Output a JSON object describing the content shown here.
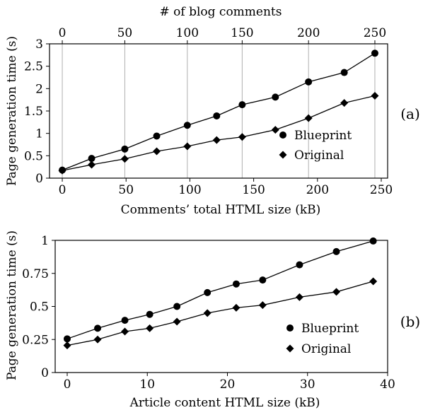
{
  "chart_data": [
    {
      "type": "line",
      "panel_label": "(a)",
      "xlabel": "Comments’ total HTML size (kB)",
      "ylabel": "Page generation time (s)",
      "top_xlabel": "# of blog comments",
      "xlim": [
        -10,
        255
      ],
      "ylim": [
        0,
        3
      ],
      "xticks": [
        0,
        50,
        100,
        150,
        200,
        250
      ],
      "yticks": [
        0,
        0.5,
        1,
        1.5,
        2,
        2.5,
        3
      ],
      "ytick_labels": [
        "0",
        "0.5",
        "1",
        "1.5",
        "2",
        "2.5",
        "3"
      ],
      "top_xtick_values": [
        0,
        49,
        98,
        141,
        193,
        245
      ],
      "top_xtick_labels": [
        "0",
        "50",
        "100",
        "150",
        "200",
        "250"
      ],
      "vertical_gridlines": true,
      "legend_position": "lower-right",
      "series": [
        {
          "name": "Blueprint",
          "marker": "circle",
          "x": [
            0,
            23,
            49,
            74,
            98,
            121,
            141,
            167,
            193,
            221,
            245
          ],
          "y": [
            0.18,
            0.44,
            0.65,
            0.94,
            1.18,
            1.39,
            1.64,
            1.81,
            2.15,
            2.36,
            2.79
          ]
        },
        {
          "name": "Original",
          "marker": "diamond",
          "x": [
            0,
            23,
            49,
            74,
            98,
            121,
            141,
            167,
            193,
            221,
            245
          ],
          "y": [
            0.17,
            0.3,
            0.43,
            0.6,
            0.71,
            0.85,
            0.92,
            1.08,
            1.34,
            1.68,
            1.84
          ]
        }
      ]
    },
    {
      "type": "line",
      "panel_label": "(b)",
      "xlabel": "Article content HTML size (kB)",
      "ylabel": "Page generation time (s)",
      "xlim": [
        -1.5,
        40
      ],
      "ylim": [
        0,
        1
      ],
      "xticks": [
        0,
        10,
        20,
        30,
        40
      ],
      "yticks": [
        0,
        0.25,
        0.5,
        0.75,
        1
      ],
      "ytick_labels": [
        "0",
        "0.25",
        "0.5",
        "0.75",
        "1"
      ],
      "legend_position": "lower-right",
      "series": [
        {
          "name": "Blueprint",
          "marker": "circle",
          "x": [
            0,
            3.8,
            7.2,
            10.3,
            13.7,
            17.5,
            21.1,
            24.4,
            29,
            33.6,
            38.2
          ],
          "y": [
            0.255,
            0.335,
            0.395,
            0.44,
            0.5,
            0.605,
            0.67,
            0.7,
            0.815,
            0.915,
            0.995
          ]
        },
        {
          "name": "Original",
          "marker": "diamond",
          "x": [
            0,
            3.8,
            7.2,
            10.3,
            13.7,
            17.5,
            21.1,
            24.4,
            29,
            33.6,
            38.2
          ],
          "y": [
            0.205,
            0.25,
            0.31,
            0.335,
            0.385,
            0.45,
            0.49,
            0.51,
            0.57,
            0.61,
            0.69
          ]
        }
      ]
    }
  ]
}
